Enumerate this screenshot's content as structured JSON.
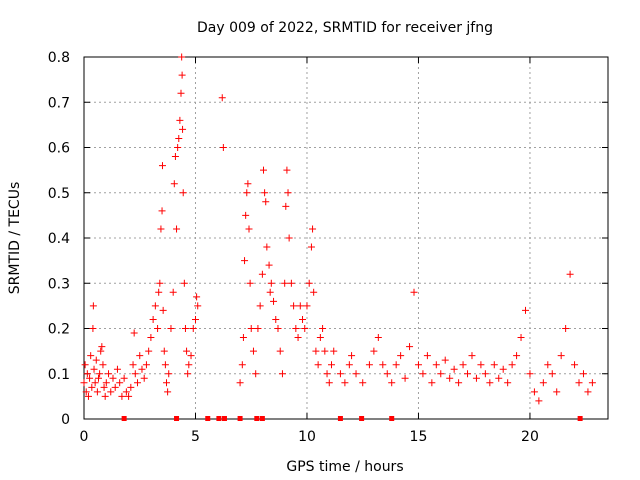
{
  "chart_data": {
    "type": "scatter",
    "title": "Day 009 of 2022, SRMTID for receiver jfng",
    "xlabel": "GPS time / hours",
    "ylabel": "SRMTID / TECUs",
    "xlim": [
      0,
      23.5
    ],
    "ylim": [
      0,
      0.8
    ],
    "x_ticks": [
      0,
      5,
      10,
      15,
      20
    ],
    "y_ticks": [
      0,
      0.1,
      0.2,
      0.3,
      0.4,
      0.5,
      0.6,
      0.7,
      0.8
    ],
    "x_tick_labels": [
      "0",
      "5",
      "10",
      "15",
      "20"
    ],
    "y_tick_labels": [
      "0",
      "0.1",
      "0.2",
      "0.3",
      "0.4",
      "0.5",
      "0.6",
      "0.7",
      "0.8"
    ],
    "grid": true,
    "marker": "plus",
    "color": "#ff0000",
    "series": [
      {
        "name": "SRMTID",
        "points": [
          [
            0.0,
            0.08
          ],
          [
            0.05,
            0.12
          ],
          [
            0.1,
            0.06
          ],
          [
            0.15,
            0.1
          ],
          [
            0.2,
            0.05
          ],
          [
            0.25,
            0.09
          ],
          [
            0.3,
            0.14
          ],
          [
            0.35,
            0.07
          ],
          [
            0.4,
            0.2
          ],
          [
            0.42,
            0.25
          ],
          [
            0.45,
            0.11
          ],
          [
            0.5,
            0.08
          ],
          [
            0.55,
            0.13
          ],
          [
            0.6,
            0.06
          ],
          [
            0.65,
            0.09
          ],
          [
            0.7,
            0.1
          ],
          [
            0.75,
            0.15
          ],
          [
            0.8,
            0.16
          ],
          [
            0.85,
            0.12
          ],
          [
            0.9,
            0.07
          ],
          [
            0.95,
            0.05
          ],
          [
            1.0,
            0.08
          ],
          [
            1.1,
            0.1
          ],
          [
            1.2,
            0.06
          ],
          [
            1.3,
            0.09
          ],
          [
            1.4,
            0.07
          ],
          [
            1.5,
            0.11
          ],
          [
            1.6,
            0.08
          ],
          [
            1.7,
            0.05
          ],
          [
            1.8,
            0.09
          ],
          [
            1.9,
            0.06
          ],
          [
            2.0,
            0.05
          ],
          [
            2.1,
            0.07
          ],
          [
            2.2,
            0.12
          ],
          [
            2.25,
            0.19
          ],
          [
            2.3,
            0.1
          ],
          [
            2.4,
            0.08
          ],
          [
            2.5,
            0.14
          ],
          [
            2.6,
            0.11
          ],
          [
            2.7,
            0.09
          ],
          [
            2.8,
            0.12
          ],
          [
            2.9,
            0.15
          ],
          [
            3.0,
            0.18
          ],
          [
            3.1,
            0.22
          ],
          [
            3.2,
            0.25
          ],
          [
            3.3,
            0.2
          ],
          [
            3.35,
            0.28
          ],
          [
            3.4,
            0.3
          ],
          [
            3.45,
            0.42
          ],
          [
            3.5,
            0.46
          ],
          [
            3.52,
            0.56
          ],
          [
            3.55,
            0.24
          ],
          [
            3.6,
            0.15
          ],
          [
            3.65,
            0.12
          ],
          [
            3.7,
            0.08
          ],
          [
            3.75,
            0.06
          ],
          [
            3.8,
            0.1
          ],
          [
            3.9,
            0.2
          ],
          [
            4.0,
            0.28
          ],
          [
            4.05,
            0.52
          ],
          [
            4.1,
            0.58
          ],
          [
            4.15,
            0.42
          ],
          [
            4.2,
            0.6
          ],
          [
            4.25,
            0.62
          ],
          [
            4.3,
            0.66
          ],
          [
            4.35,
            0.72
          ],
          [
            4.38,
            0.8
          ],
          [
            4.4,
            0.76
          ],
          [
            4.42,
            0.64
          ],
          [
            4.45,
            0.5
          ],
          [
            4.5,
            0.3
          ],
          [
            4.55,
            0.2
          ],
          [
            4.6,
            0.15
          ],
          [
            4.65,
            0.1
          ],
          [
            4.7,
            0.12
          ],
          [
            4.8,
            0.14
          ],
          [
            4.9,
            0.2
          ],
          [
            5.0,
            0.22
          ],
          [
            5.05,
            0.27
          ],
          [
            5.1,
            0.25
          ],
          [
            6.2,
            0.71
          ],
          [
            6.25,
            0.6
          ],
          [
            7.0,
            0.08
          ],
          [
            7.1,
            0.12
          ],
          [
            7.15,
            0.18
          ],
          [
            7.2,
            0.35
          ],
          [
            7.25,
            0.45
          ],
          [
            7.3,
            0.5
          ],
          [
            7.35,
            0.52
          ],
          [
            7.4,
            0.42
          ],
          [
            7.45,
            0.3
          ],
          [
            7.5,
            0.2
          ],
          [
            7.6,
            0.15
          ],
          [
            7.7,
            0.1
          ],
          [
            7.8,
            0.2
          ],
          [
            7.9,
            0.25
          ],
          [
            8.0,
            0.32
          ],
          [
            8.05,
            0.55
          ],
          [
            8.1,
            0.5
          ],
          [
            8.15,
            0.48
          ],
          [
            8.2,
            0.38
          ],
          [
            8.3,
            0.34
          ],
          [
            8.35,
            0.28
          ],
          [
            8.4,
            0.3
          ],
          [
            8.5,
            0.26
          ],
          [
            8.6,
            0.22
          ],
          [
            8.7,
            0.2
          ],
          [
            8.8,
            0.15
          ],
          [
            8.9,
            0.1
          ],
          [
            9.0,
            0.3
          ],
          [
            9.05,
            0.47
          ],
          [
            9.1,
            0.55
          ],
          [
            9.15,
            0.5
          ],
          [
            9.2,
            0.4
          ],
          [
            9.3,
            0.3
          ],
          [
            9.4,
            0.25
          ],
          [
            9.5,
            0.2
          ],
          [
            9.6,
            0.18
          ],
          [
            9.7,
            0.25
          ],
          [
            9.8,
            0.22
          ],
          [
            9.9,
            0.2
          ],
          [
            10.0,
            0.25
          ],
          [
            10.1,
            0.3
          ],
          [
            10.2,
            0.38
          ],
          [
            10.25,
            0.42
          ],
          [
            10.3,
            0.28
          ],
          [
            10.4,
            0.15
          ],
          [
            10.5,
            0.12
          ],
          [
            10.6,
            0.18
          ],
          [
            10.7,
            0.2
          ],
          [
            10.8,
            0.15
          ],
          [
            10.9,
            0.1
          ],
          [
            11.0,
            0.08
          ],
          [
            11.1,
            0.12
          ],
          [
            11.2,
            0.15
          ],
          [
            11.5,
            0.1
          ],
          [
            11.7,
            0.08
          ],
          [
            11.9,
            0.12
          ],
          [
            12.0,
            0.14
          ],
          [
            12.2,
            0.1
          ],
          [
            12.5,
            0.08
          ],
          [
            12.8,
            0.12
          ],
          [
            13.0,
            0.15
          ],
          [
            13.2,
            0.18
          ],
          [
            13.4,
            0.12
          ],
          [
            13.6,
            0.1
          ],
          [
            13.8,
            0.08
          ],
          [
            14.0,
            0.12
          ],
          [
            14.2,
            0.14
          ],
          [
            14.4,
            0.09
          ],
          [
            14.6,
            0.16
          ],
          [
            14.8,
            0.28
          ],
          [
            15.0,
            0.12
          ],
          [
            15.2,
            0.1
          ],
          [
            15.4,
            0.14
          ],
          [
            15.6,
            0.08
          ],
          [
            15.8,
            0.12
          ],
          [
            16.0,
            0.1
          ],
          [
            16.2,
            0.13
          ],
          [
            16.4,
            0.09
          ],
          [
            16.6,
            0.11
          ],
          [
            16.8,
            0.08
          ],
          [
            17.0,
            0.12
          ],
          [
            17.2,
            0.1
          ],
          [
            17.4,
            0.14
          ],
          [
            17.6,
            0.09
          ],
          [
            17.8,
            0.12
          ],
          [
            18.0,
            0.1
          ],
          [
            18.2,
            0.08
          ],
          [
            18.4,
            0.12
          ],
          [
            18.6,
            0.09
          ],
          [
            18.8,
            0.11
          ],
          [
            19.0,
            0.08
          ],
          [
            19.2,
            0.12
          ],
          [
            19.4,
            0.14
          ],
          [
            19.6,
            0.18
          ],
          [
            19.8,
            0.24
          ],
          [
            20.0,
            0.1
          ],
          [
            20.2,
            0.06
          ],
          [
            20.4,
            0.04
          ],
          [
            20.6,
            0.08
          ],
          [
            20.8,
            0.12
          ],
          [
            21.0,
            0.1
          ],
          [
            21.2,
            0.06
          ],
          [
            21.4,
            0.14
          ],
          [
            21.6,
            0.2
          ],
          [
            21.8,
            0.32
          ],
          [
            22.0,
            0.12
          ],
          [
            22.2,
            0.08
          ],
          [
            22.4,
            0.1
          ],
          [
            22.6,
            0.06
          ],
          [
            22.8,
            0.08
          ]
        ]
      }
    ],
    "gap_markers_x": [
      1.8,
      4.15,
      5.55,
      6.05,
      6.3,
      7.0,
      7.75,
      8.0,
      11.5,
      12.45,
      13.8,
      22.25
    ]
  }
}
